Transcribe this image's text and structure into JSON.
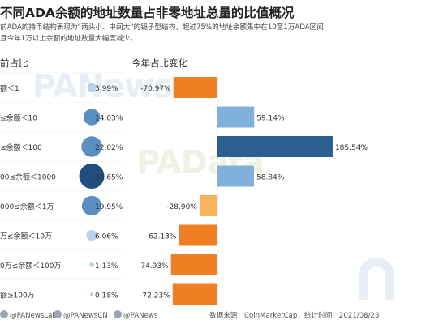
{
  "header": {
    "title": "不同ADA余额的地址数量占非零地址总量的比值概况",
    "subtitle_line1": "前ADA的持币结构表现为“两头小、中间大”的镜子型结构，超过75%的地址余额集中在10至1万ADA区间",
    "subtitle_line2": "且今年1万以上余额的地址数量大幅度减少。"
  },
  "sections": {
    "left": "前占比",
    "right": "今年占比变化"
  },
  "watermark": {
    "left": "PANews",
    "center": "PAData"
  },
  "colors": {
    "bubble_light": "#b7d2ea",
    "bubble_mid": "#5b8ec1",
    "bubble_dark": "#1f4e80",
    "bar_negative": "#f07f22",
    "bar_negative_light": "#f6b35d",
    "bar_positive": "#7fb1da",
    "bar_positive_dark": "#2c5e8f"
  },
  "chart_data": [
    {
      "type": "scatter",
      "title": "前占比",
      "categories": [
        "额＜1",
        "≤余额＜10",
        "≤余额＜100",
        "00≤余额＜1000",
        "000≤余额＜1万",
        "万≤余额＜10万",
        "0万≤余额＜100万",
        "额≥100万"
      ],
      "values": [
        3.99,
        14.03,
        22.02,
        32.65,
        19.95,
        6.06,
        1.13,
        0.18
      ],
      "labels": [
        "3.99%",
        "14.03%",
        "22.02%",
        "32.65%",
        "19.95%",
        "6.06%",
        "1.13%",
        "0.18%"
      ],
      "unit": "%"
    },
    {
      "type": "bar",
      "title": "今年占比变化",
      "categories": [
        "额＜1",
        "≤余额＜10",
        "≤余额＜100",
        "00≤余额＜1000",
        "000≤余额＜1万",
        "万≤余额＜10万",
        "0万≤余额＜100万",
        "额≥100万"
      ],
      "values": [
        -70.97,
        59.14,
        185.54,
        58.84,
        -28.9,
        -62.13,
        -74.93,
        -72.23
      ],
      "labels": [
        "-70.97%",
        "59.14%",
        "185.54%",
        "58.84%",
        "-28.90%",
        "-62.13%",
        "-74.93%",
        "-72.23%"
      ],
      "unit": "%"
    }
  ],
  "footer": {
    "handle1": "@PANewsLab",
    "handle2": "@PANewsCN",
    "handle3": "@PANews",
    "source": "数据来源：CoinMarketCap；统计时间：2021/08/23"
  }
}
